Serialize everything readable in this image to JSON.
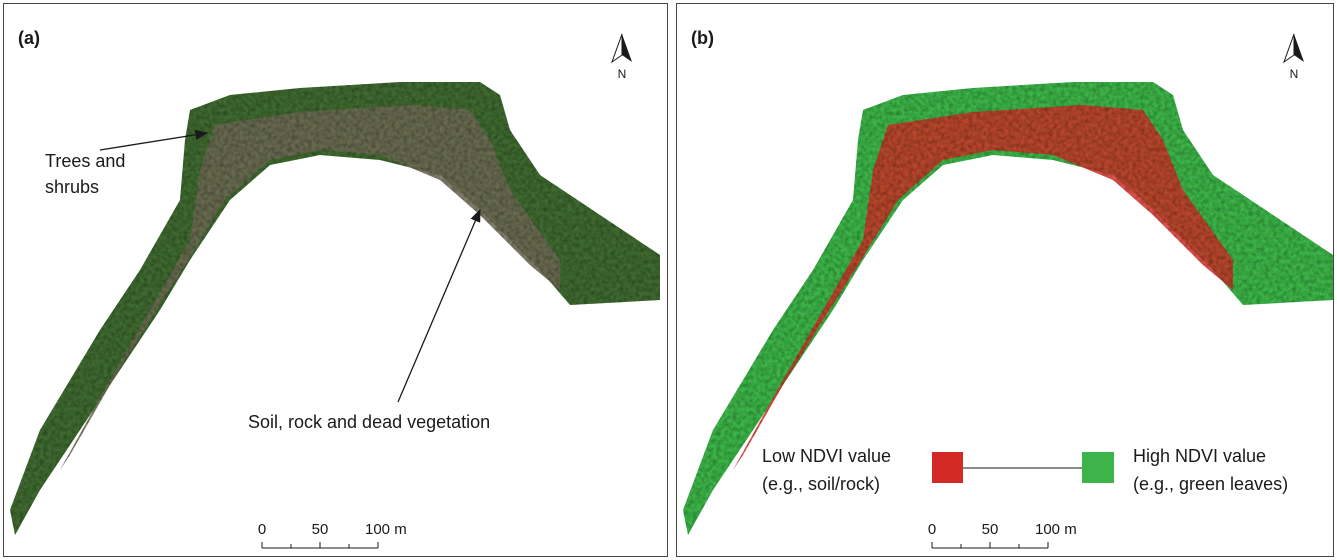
{
  "panels": [
    {
      "label": "(a)",
      "north": "N",
      "annotations": [
        {
          "lines": [
            "Trees and",
            "shrubs"
          ]
        },
        {
          "lines": [
            "Soil, rock and dead vegetation"
          ]
        }
      ],
      "scale_labels": [
        "0",
        "50",
        "100 m"
      ]
    },
    {
      "label": "(b)",
      "north": "N",
      "legend": {
        "low": [
          "Low NDVI value",
          "(e.g., soil/rock)"
        ],
        "high": [
          "High NDVI value",
          "(e.g., green leaves)"
        ],
        "low_color": "#d42a26",
        "high_color": "#3cb44a"
      },
      "scale_labels": [
        "0",
        "50",
        "100 m"
      ]
    }
  ]
}
